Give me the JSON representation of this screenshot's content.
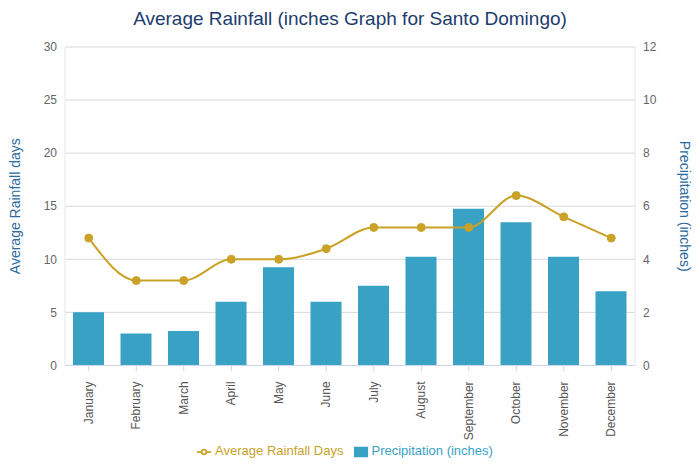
{
  "chart_data": {
    "type": "bar",
    "title": "Average Rainfall (inches Graph for Santo Domingo)",
    "categories": [
      "January",
      "February",
      "March",
      "April",
      "May",
      "June",
      "July",
      "August",
      "September",
      "October",
      "November",
      "December"
    ],
    "y_label": "Average Rainfall days",
    "y2_label": "Precipitation (inches)",
    "ylim": [
      0,
      30
    ],
    "yticks": [
      0,
      5,
      10,
      15,
      20,
      25,
      30
    ],
    "y2lim": [
      0,
      12
    ],
    "y2ticks": [
      0,
      2,
      4,
      6,
      8,
      10,
      12
    ],
    "grid": true,
    "legend": "bottom",
    "series": [
      {
        "name": "Precipitation (inches)",
        "type": "bar",
        "axis": "y2",
        "color": "#38a1c4",
        "values": [
          2.0,
          1.2,
          1.3,
          2.4,
          3.7,
          2.4,
          3.0,
          4.1,
          5.9,
          5.4,
          4.1,
          2.8
        ]
      },
      {
        "name": "Average Rainfall Days",
        "type": "line",
        "axis": "y",
        "color": "#c9a227",
        "marker": "circle",
        "line_style": "solid",
        "values": [
          12,
          8,
          8,
          10,
          10,
          11,
          13,
          13,
          13,
          16,
          14,
          12
        ]
      }
    ]
  }
}
